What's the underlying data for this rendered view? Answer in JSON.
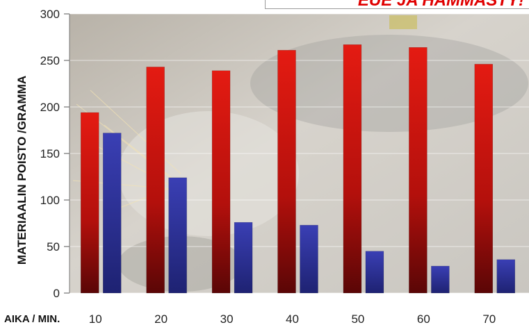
{
  "chart_data": {
    "type": "bar",
    "title": "EUE JA HAMMASTY!",
    "xlabel": "AIKA / MIN.",
    "ylabel": "MATERIAALIN POISTO /GRAMMA",
    "categories": [
      "10",
      "20",
      "30",
      "40",
      "50",
      "60",
      "70"
    ],
    "ylim": [
      0,
      300
    ],
    "yticks": [
      0,
      50,
      100,
      150,
      200,
      250,
      300
    ],
    "grid": true,
    "legend": "none",
    "series": [
      {
        "values": [
          194,
          243,
          239,
          261,
          267,
          264,
          246
        ]
      },
      {
        "values": [
          172,
          124,
          76,
          73,
          45,
          29,
          36
        ]
      }
    ]
  },
  "colors": {
    "red_top": "#e41b12",
    "red_bottom": "#5a0606",
    "blue_top": "#3a3fb4",
    "blue_bottom": "#1e2272",
    "title": "#e00000"
  },
  "background_image": "angle-grinder-sparks-photo"
}
